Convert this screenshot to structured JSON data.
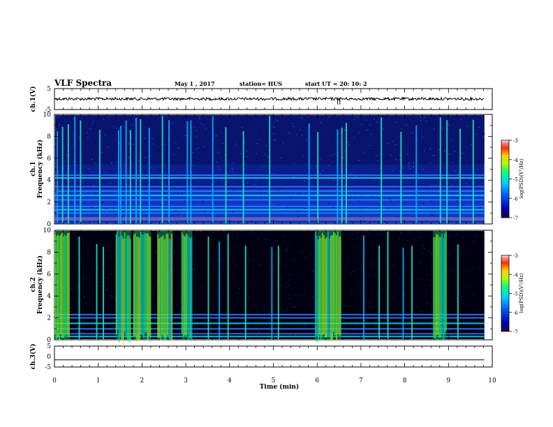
{
  "header": {
    "title": "VLF Spectra",
    "date": "May 1  , 2017",
    "station": "station= HUS",
    "start": "start  UT  =   20: 10: 2"
  },
  "colors": {
    "background": "#000000",
    "noise_floor": "#0a1a7a",
    "waveform": "#000000",
    "colormap": [
      "#3a003a",
      "#0000b4",
      "#0050ff",
      "#00c8ff",
      "#00ff90",
      "#a0ff00",
      "#ffe600",
      "#ff6a00",
      "#ff0000",
      "#ffffff"
    ]
  },
  "chart_data": [
    {
      "type": "line",
      "name": "ch1-waveform",
      "ylabel": "ch.1(V)",
      "ylim": [
        -5,
        5
      ],
      "yticks": [
        "5",
        "-5"
      ],
      "xlim": [
        0,
        10
      ],
      "baseline_v": 0.1,
      "spikes_min": [
        6.47,
        6.52
      ]
    },
    {
      "type": "heatmap",
      "name": "ch1-spectrogram",
      "ylabel": "Frequency (kHz)",
      "channel_label": "ch.1",
      "xlim": [
        0,
        10
      ],
      "data_xmax": 9.82,
      "ylim": [
        0,
        10
      ],
      "yticks": [
        "0",
        "2",
        "4",
        "6",
        "8",
        "10"
      ],
      "colorbar": {
        "label": "log(PSD)(V²/Hz)",
        "range": [
          -7,
          -3
        ],
        "ticks": [
          "-3",
          "-4",
          "-5",
          "-6",
          "-7"
        ]
      },
      "bands_khz": [
        0.4,
        0.55,
        1.0,
        1.3,
        1.6,
        2.2,
        2.6,
        3.0,
        3.4,
        4.2,
        4.45
      ],
      "bursts_min": [
        0.05,
        0.17,
        0.3,
        0.45,
        0.58,
        1.02,
        1.45,
        1.5,
        1.62,
        1.72,
        1.85,
        1.95,
        2.15,
        2.45,
        2.6,
        3.02,
        3.1,
        3.6,
        3.9,
        4.3,
        4.9,
        5.8,
        6.0,
        6.45,
        6.55,
        6.65,
        7.45,
        7.9,
        8.25,
        8.8,
        8.95,
        9.25,
        9.55
      ]
    },
    {
      "type": "heatmap",
      "name": "ch2-spectrogram",
      "ylabel": "Frequency (kHz)",
      "channel_label": "ch.2",
      "xlim": [
        0,
        10
      ],
      "data_xmax": 9.82,
      "ylim": [
        0,
        10
      ],
      "yticks": [
        "0",
        "2",
        "4",
        "6",
        "8",
        "10"
      ],
      "colorbar": {
        "label": "log(PSD)(V²/Hz)",
        "range": [
          -7,
          -3
        ],
        "ticks": [
          "-3",
          "-4",
          "-5",
          "-6",
          "-7"
        ]
      },
      "bands_khz": [
        0.3,
        0.55,
        1.0,
        1.5,
        2.0,
        2.3
      ],
      "strong_intervals_min": [
        [
          0.0,
          0.35
        ],
        [
          1.4,
          1.75
        ],
        [
          1.8,
          2.2
        ],
        [
          2.35,
          2.7
        ],
        [
          2.9,
          3.15
        ],
        [
          5.95,
          6.55
        ],
        [
          8.65,
          8.95
        ]
      ],
      "weak_bursts_min": [
        0.55,
        0.95,
        1.1,
        3.5,
        3.75,
        3.95,
        4.35,
        4.95,
        5.1,
        7.05,
        7.4,
        7.6,
        7.95,
        8.15,
        9.2
      ]
    },
    {
      "type": "line",
      "name": "ch3-waveform",
      "ylabel": "ch.3(V)",
      "ylim": [
        -5,
        5
      ],
      "yticks": [
        "5",
        "0",
        "-5"
      ],
      "xlim": [
        0,
        10
      ],
      "xticks": [
        "0",
        "1",
        "2",
        "3",
        "4",
        "5",
        "6",
        "7",
        "8",
        "9",
        "10"
      ],
      "xlabel": "Time (min)",
      "baseline_v": -1.6
    }
  ]
}
